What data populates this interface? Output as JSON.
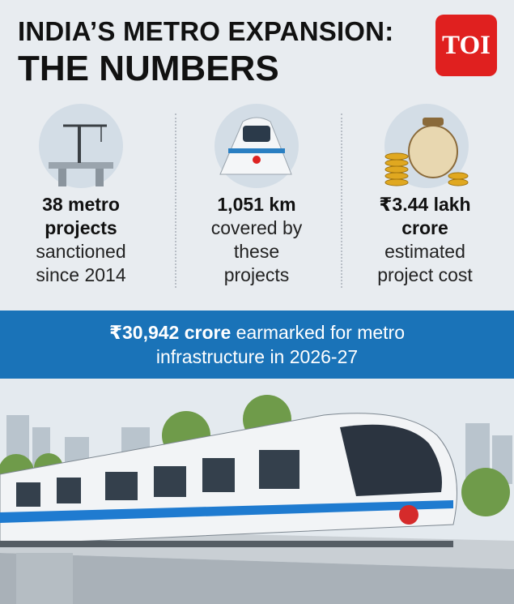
{
  "header": {
    "title_line1": "INDIA’S METRO EXPANSION:",
    "title_line2": "THE NUMBERS",
    "logo": "TOI"
  },
  "stats": [
    {
      "bold": "38 metro projects",
      "text": "sanctioned since 2014"
    },
    {
      "bold": "1,051 km",
      "text": "covered by these projects"
    },
    {
      "bold": "₹3.44 lakh crore",
      "text": "estimated project cost"
    }
  ],
  "banner": {
    "bold": "₹30,942 crore",
    "text": "earmarked for metro infrastructure in 2026-27"
  }
}
